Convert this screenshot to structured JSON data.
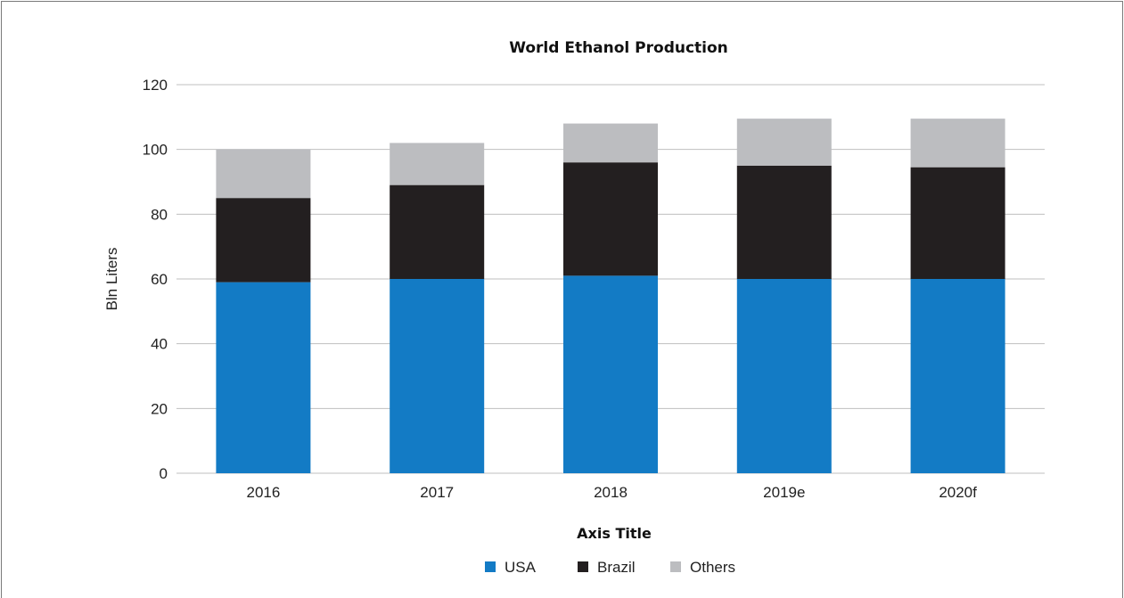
{
  "chart_data": {
    "type": "bar",
    "stacked": true,
    "title": "World Ethanol Production",
    "xlabel": "Axis Title",
    "ylabel": "Bln Liters",
    "ylim": [
      0,
      120
    ],
    "yticks": [
      0,
      20,
      40,
      60,
      80,
      100,
      120
    ],
    "grid": true,
    "legend": "bottom",
    "categories": [
      "2016",
      "2017",
      "2018",
      "2019e",
      "2020f"
    ],
    "series": [
      {
        "name": "USA",
        "color": "#137bc5",
        "values": [
          59,
          60,
          61,
          60,
          60
        ]
      },
      {
        "name": "Brazil",
        "color": "#231f20",
        "values": [
          26,
          29,
          35,
          35,
          34.5
        ]
      },
      {
        "name": "Others",
        "color": "#bcbdc0",
        "values": [
          15,
          13,
          12,
          14.5,
          15
        ]
      }
    ]
  }
}
